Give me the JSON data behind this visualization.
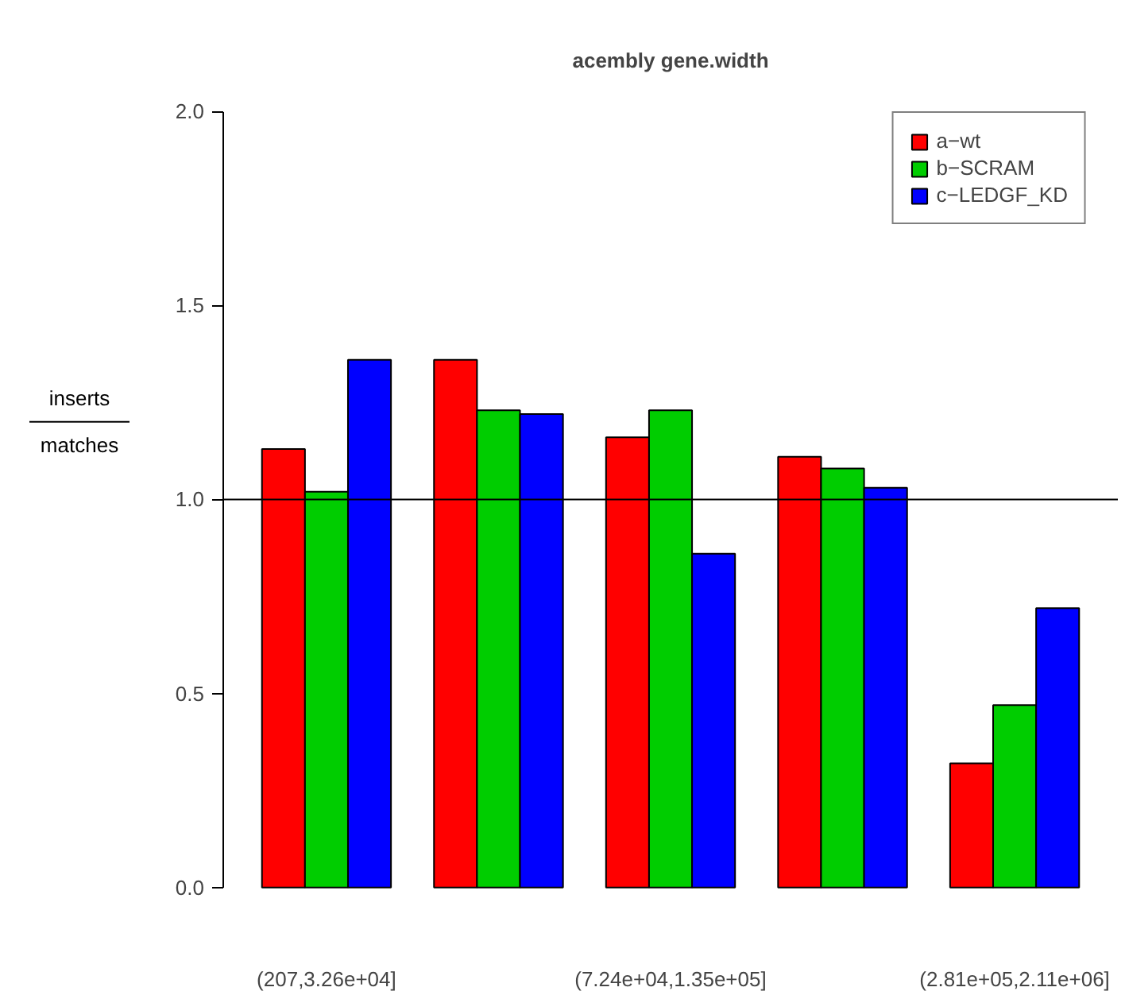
{
  "chart_data": {
    "type": "bar",
    "title": "acembly gene.width",
    "ylabel": "inserts\nmatches",
    "categories": [
      "(207,3.26e+04]",
      null,
      "(7.24e+04,1.35e+05]",
      null,
      "(2.81e+05,2.11e+06]"
    ],
    "series": [
      {
        "name": "a−wt",
        "color": "#ff0000",
        "values": [
          1.13,
          1.36,
          1.16,
          1.11,
          0.32
        ]
      },
      {
        "name": "b−SCRAM",
        "color": "#00cd00",
        "values": [
          1.02,
          1.23,
          1.23,
          1.08,
          0.47
        ]
      },
      {
        "name": "c−LEDGF_KD",
        "color": "#0000ff",
        "values": [
          1.36,
          1.22,
          0.86,
          1.03,
          0.72
        ]
      }
    ],
    "ylim": [
      0,
      2.0
    ],
    "yticks": [
      {
        "value": 0,
        "label": "0.0"
      },
      {
        "value": 0.5,
        "label": "0.5"
      },
      {
        "value": 1,
        "label": "1.0"
      },
      {
        "value": 1.5,
        "label": "1.5"
      },
      {
        "value": 2,
        "label": "2.0"
      }
    ],
    "ref_lines": [
      {
        "axis": "y",
        "value": 1,
        "color": "#000000"
      }
    ],
    "grid": false,
    "legend": "top right"
  }
}
